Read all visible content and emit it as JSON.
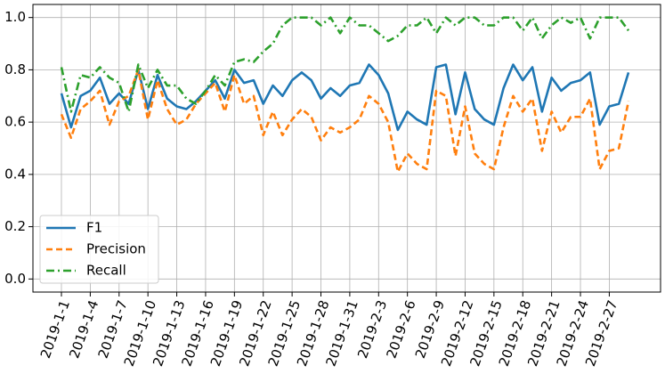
{
  "chart_data": {
    "type": "line",
    "categories": [
      "2019-1-1",
      null,
      null,
      "2019-1-4",
      null,
      null,
      "2019-1-7",
      null,
      null,
      "2019-1-10",
      null,
      null,
      "2019-1-13",
      null,
      null,
      "2019-1-16",
      null,
      null,
      "2019-1-19",
      null,
      null,
      "2019-1-22",
      null,
      null,
      "2019-1-25",
      null,
      null,
      "2019-1-28",
      null,
      null,
      "2019-1-31",
      null,
      null,
      "2019-2-3",
      null,
      null,
      "2019-2-6",
      null,
      null,
      "2019-2-9",
      null,
      null,
      "2019-2-12",
      null,
      null,
      "2019-2-15",
      null,
      null,
      "2019-2-18",
      null,
      null,
      "2019-2-21",
      null,
      null,
      "2019-2-24",
      null,
      null,
      "2019-2-27",
      null,
      null
    ],
    "series": [
      {
        "name": "F1",
        "color": "#1f77b4",
        "dash": "solid",
        "values": [
          0.71,
          0.58,
          0.7,
          0.72,
          0.77,
          0.67,
          0.71,
          0.67,
          0.8,
          0.65,
          0.78,
          0.69,
          0.66,
          0.65,
          0.68,
          0.72,
          0.76,
          0.69,
          0.8,
          0.75,
          0.76,
          0.67,
          0.74,
          0.7,
          0.76,
          0.79,
          0.76,
          0.69,
          0.73,
          0.7,
          0.74,
          0.75,
          0.82,
          0.78,
          0.71,
          0.57,
          0.64,
          0.61,
          0.59,
          0.81,
          0.82,
          0.63,
          0.79,
          0.65,
          0.61,
          0.59,
          0.73,
          0.82,
          0.76,
          0.81,
          0.64,
          0.77,
          0.72,
          0.75,
          0.76,
          0.79,
          0.59,
          0.66,
          0.67,
          0.79
        ]
      },
      {
        "name": "Precision",
        "color": "#ff7f0e",
        "dash": "dashed",
        "values": [
          0.63,
          0.54,
          0.65,
          0.68,
          0.72,
          0.59,
          0.68,
          0.7,
          0.8,
          0.61,
          0.76,
          0.65,
          0.59,
          0.61,
          0.67,
          0.71,
          0.75,
          0.64,
          0.78,
          0.67,
          0.7,
          0.55,
          0.64,
          0.55,
          0.61,
          0.65,
          0.62,
          0.53,
          0.58,
          0.56,
          0.58,
          0.61,
          0.7,
          0.67,
          0.6,
          0.41,
          0.48,
          0.44,
          0.42,
          0.72,
          0.7,
          0.47,
          0.66,
          0.48,
          0.44,
          0.42,
          0.58,
          0.7,
          0.64,
          0.69,
          0.49,
          0.64,
          0.56,
          0.62,
          0.62,
          0.69,
          0.42,
          0.49,
          0.5,
          0.68
        ]
      },
      {
        "name": "Recall",
        "color": "#2ca02c",
        "dash": "dashdot",
        "values": [
          0.81,
          0.64,
          0.78,
          0.77,
          0.81,
          0.77,
          0.75,
          0.64,
          0.82,
          0.73,
          0.8,
          0.74,
          0.74,
          0.69,
          0.67,
          0.72,
          0.78,
          0.74,
          0.83,
          0.84,
          0.83,
          0.87,
          0.9,
          0.97,
          1.0,
          1.0,
          1.0,
          0.97,
          1.0,
          0.94,
          1.0,
          0.97,
          0.97,
          0.94,
          0.91,
          0.93,
          0.97,
          0.97,
          1.0,
          0.94,
          1.0,
          0.97,
          1.0,
          1.0,
          0.97,
          0.97,
          1.0,
          1.0,
          0.95,
          1.0,
          0.92,
          0.97,
          1.0,
          0.98,
          1.0,
          0.92,
          1.0,
          1.0,
          1.0,
          0.95
        ]
      }
    ],
    "ylim": [
      -0.05,
      1.05
    ],
    "yticks": [
      {
        "value": 0,
        "label": "0.0"
      },
      0.2,
      0.4,
      0.6,
      0.8,
      {
        "value": 1,
        "label": "1.0"
      }
    ],
    "grid": true,
    "legend": "lower left"
  }
}
